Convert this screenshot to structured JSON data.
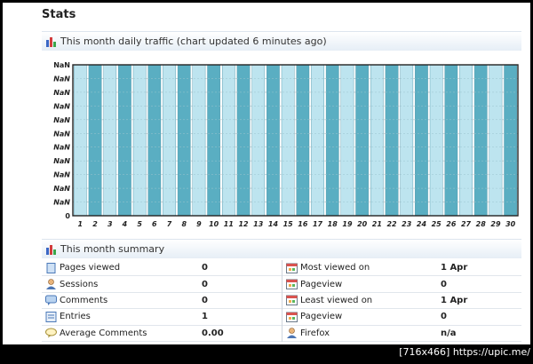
{
  "page": {
    "title": "Stats"
  },
  "traffic": {
    "heading": "This month daily traffic (chart updated 6 minutes ago)"
  },
  "chart_data": {
    "type": "bar",
    "title": "",
    "xlabel": "",
    "ylabel": "",
    "categories": [
      "1",
      "2",
      "3",
      "4",
      "5",
      "6",
      "7",
      "8",
      "9",
      "10",
      "11",
      "12",
      "13",
      "14",
      "15",
      "16",
      "17",
      "18",
      "19",
      "20",
      "21",
      "22",
      "23",
      "24",
      "25",
      "26",
      "27",
      "28",
      "29",
      "30"
    ],
    "y_tick_labels": [
      "NaN",
      "NaN",
      "NaN",
      "NaN",
      "NaN",
      "NaN",
      "NaN",
      "NaN",
      "NaN",
      "NaN",
      "NaN",
      "0"
    ],
    "series": [
      {
        "values": [
          0,
          0,
          0,
          0,
          0,
          0,
          0,
          0,
          0,
          0,
          0,
          0,
          0,
          0,
          0,
          0,
          0,
          0,
          0,
          0,
          0,
          0,
          0,
          0,
          0,
          0,
          0,
          0,
          0,
          0
        ]
      }
    ],
    "colors": {
      "light": "#bde4ef",
      "dark": "#5aaec2"
    },
    "grid": true
  },
  "summary": {
    "heading": "This month summary",
    "left": [
      {
        "icon": "page-icon",
        "label": "Pages viewed",
        "value": "0"
      },
      {
        "icon": "user-icon",
        "label": "Sessions",
        "value": "0"
      },
      {
        "icon": "comment-icon",
        "label": "Comments",
        "value": "0"
      },
      {
        "icon": "entry-icon",
        "label": "Entries",
        "value": "1"
      },
      {
        "icon": "speech-icon",
        "label": "Average Comments",
        "value": "0.00"
      }
    ],
    "right": [
      {
        "icon": "calendar-icon",
        "label": "Most viewed on",
        "value": "1 Apr"
      },
      {
        "icon": "calendar-icon",
        "label": "Pageview",
        "value": "0"
      },
      {
        "icon": "calendar-icon",
        "label": "Least viewed on",
        "value": "1 Apr"
      },
      {
        "icon": "calendar-icon",
        "label": "Pageview",
        "value": "0"
      },
      {
        "icon": "user-icon",
        "label": "Firefox",
        "value": "n/a"
      }
    ]
  },
  "watermark": "[716x466] https://upic.me/"
}
